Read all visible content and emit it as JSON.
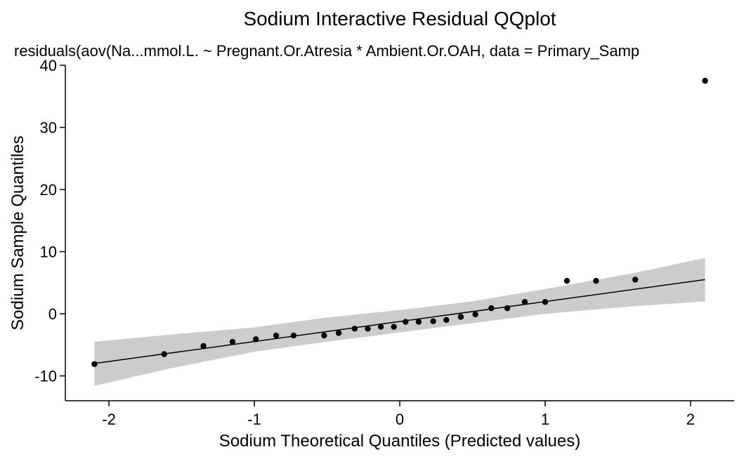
{
  "chart_data": {
    "type": "scatter",
    "title": "Sodium Interactive Residual QQplot",
    "subtitle": "residuals(aov(Na...mmol.L. ~ Pregnant.Or.Atresia * Ambient.Or.OAH, data = Primary_Samp",
    "xlabel": "Sodium Theoretical Quantiles (Predicted values)",
    "ylabel": "Sodium Sample Quantiles",
    "xlim": [
      -2.3,
      2.3
    ],
    "ylim": [
      -14,
      40
    ],
    "xticks": [
      -2,
      -1,
      0,
      1,
      2
    ],
    "xtick_labels": [
      "-2",
      "-1",
      "0",
      "1",
      "2"
    ],
    "yticks": [
      -10,
      0,
      10,
      20,
      30,
      40
    ],
    "ytick_labels": [
      "-10",
      "0",
      "10",
      "20",
      "30",
      "40"
    ],
    "grid": false,
    "legend": "none",
    "points": [
      {
        "x": -2.1,
        "y": -8.1
      },
      {
        "x": -1.62,
        "y": -6.5
      },
      {
        "x": -1.35,
        "y": -5.2
      },
      {
        "x": -1.15,
        "y": -4.5
      },
      {
        "x": -0.99,
        "y": -4.1
      },
      {
        "x": -0.85,
        "y": -3.5
      },
      {
        "x": -0.73,
        "y": -3.5
      },
      {
        "x": -0.52,
        "y": -3.5
      },
      {
        "x": -0.42,
        "y": -3.1
      },
      {
        "x": -0.31,
        "y": -2.4
      },
      {
        "x": -0.22,
        "y": -2.4
      },
      {
        "x": -0.13,
        "y": -2.1
      },
      {
        "x": -0.04,
        "y": -2.1
      },
      {
        "x": 0.04,
        "y": -1.3
      },
      {
        "x": 0.13,
        "y": -1.3
      },
      {
        "x": 0.23,
        "y": -1.2
      },
      {
        "x": 0.32,
        "y": -1.0
      },
      {
        "x": 0.42,
        "y": -0.5
      },
      {
        "x": 0.52,
        "y": -0.1
      },
      {
        "x": 0.63,
        "y": 0.9
      },
      {
        "x": 0.74,
        "y": 0.9
      },
      {
        "x": 0.86,
        "y": 1.9
      },
      {
        "x": 1.0,
        "y": 1.9
      },
      {
        "x": 1.15,
        "y": 5.3
      },
      {
        "x": 1.35,
        "y": 5.3
      },
      {
        "x": 1.62,
        "y": 5.5
      },
      {
        "x": 2.1,
        "y": 37.5
      }
    ],
    "reference_line": {
      "x": [
        -2.1,
        2.1
      ],
      "y": [
        -8.0,
        5.5
      ]
    },
    "confidence_band": {
      "x": [
        -2.1,
        -1.6,
        -1.0,
        -0.5,
        0.0,
        0.5,
        1.0,
        1.6,
        2.1
      ],
      "lower": [
        -11.6,
        -8.9,
        -6.1,
        -4.5,
        -3.0,
        -1.5,
        0.0,
        1.2,
        2.0
      ],
      "upper": [
        -4.5,
        -3.4,
        -2.2,
        -0.6,
        0.6,
        2.0,
        4.0,
        6.5,
        9.0
      ]
    },
    "colors": {
      "points": "#000000",
      "line": "#000000",
      "band": "#cccccc"
    }
  }
}
